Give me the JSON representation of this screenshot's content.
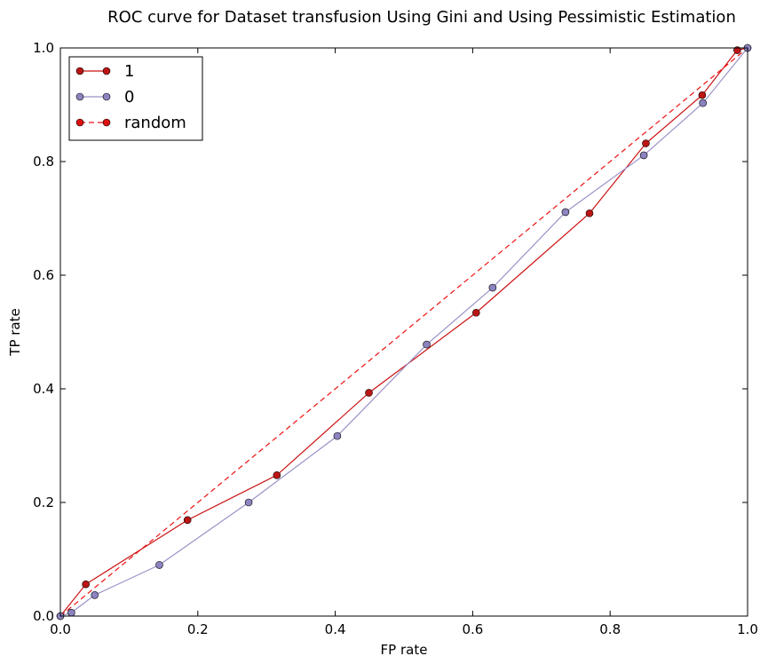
{
  "chart_data": {
    "type": "line",
    "title": "ROC curve for Dataset transfusion Using Gini and Using Pessimistic Estimation",
    "xlabel": "FP rate",
    "ylabel": "TP rate",
    "xlim": [
      0,
      1
    ],
    "ylim": [
      0,
      1
    ],
    "xticks": [
      "0.0",
      "0.2",
      "0.4",
      "0.6",
      "0.8",
      "1.0"
    ],
    "yticks": [
      "0.0",
      "0.2",
      "0.4",
      "0.6",
      "0.8",
      "1.0"
    ],
    "grid": false,
    "legend_position": "upper-left",
    "series": [
      {
        "name": "1",
        "color": "#cc1111",
        "marker_color": "#bb1515",
        "dashed": false,
        "points": [
          [
            0.0,
            0.0
          ],
          [
            0.037,
            0.056
          ],
          [
            0.185,
            0.169
          ],
          [
            0.315,
            0.248
          ],
          [
            0.449,
            0.393
          ],
          [
            0.605,
            0.534
          ],
          [
            0.77,
            0.709
          ],
          [
            0.852,
            0.832
          ],
          [
            0.934,
            0.917
          ],
          [
            0.985,
            0.996
          ],
          [
            1.0,
            1.0
          ]
        ]
      },
      {
        "name": "0",
        "color": "#9b93c8",
        "marker_color": "#8c84c0",
        "dashed": false,
        "points": [
          [
            0.0,
            0.0
          ],
          [
            0.016,
            0.006
          ],
          [
            0.05,
            0.037
          ],
          [
            0.144,
            0.09
          ],
          [
            0.274,
            0.2
          ],
          [
            0.403,
            0.317
          ],
          [
            0.533,
            0.478
          ],
          [
            0.629,
            0.578
          ],
          [
            0.735,
            0.711
          ],
          [
            0.849,
            0.811
          ],
          [
            0.935,
            0.903
          ],
          [
            1.0,
            1.0
          ]
        ]
      },
      {
        "name": "random",
        "color": "#ee1111",
        "marker_color": "#dd1111",
        "dashed": true,
        "points": [
          [
            0.0,
            0.0
          ],
          [
            1.0,
            1.0
          ]
        ]
      }
    ]
  }
}
